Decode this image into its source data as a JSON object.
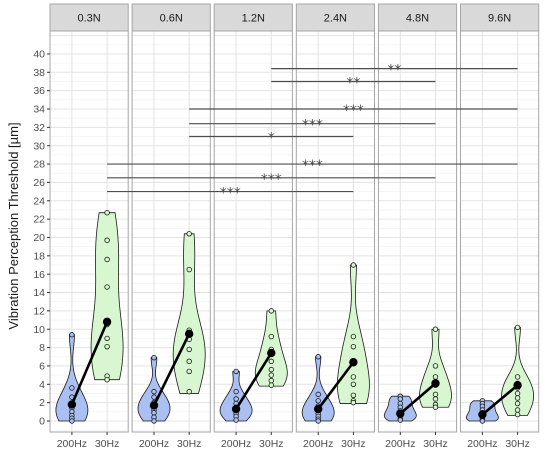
{
  "chart_data": {
    "type": "violin",
    "ylabel": "Vibration Perception Threshold [µm]",
    "xlabel": "",
    "ylim": [
      -1.2,
      42.5
    ],
    "yticks": [
      0,
      2,
      4,
      6,
      8,
      10,
      12,
      14,
      16,
      18,
      20,
      22,
      24,
      26,
      28,
      30,
      32,
      34,
      36,
      38,
      40
    ],
    "categories": [
      "200Hz",
      "30Hz"
    ],
    "grid": true,
    "colors": {
      "200Hz": "#aabff2",
      "30Hz": "#d8f7d0",
      "mean_line": "#000000",
      "panel_bg": "#ffffff",
      "strip_bg": "#d9d9d9"
    },
    "panels": [
      {
        "label": "0.3N",
        "violins": {
          "200Hz": {
            "points": [
              9.4,
              3.6,
              2.6,
              1.8,
              1.4,
              1.0,
              0.6,
              0.3,
              0.0
            ],
            "range": [
              0.0,
              9.4
            ]
          },
          "30Hz": {
            "points": [
              22.7,
              19.7,
              17.6,
              14.6,
              10.5,
              9.0,
              8.1,
              4.9,
              4.5
            ],
            "range": [
              4.5,
              22.7
            ]
          }
        },
        "means": {
          "200Hz": 1.8,
          "30Hz": 10.8
        }
      },
      {
        "label": "0.6N",
        "violins": {
          "200Hz": {
            "points": [
              6.9,
              3.2,
              2.6,
              2.0,
              1.6,
              1.2,
              0.9,
              0.4,
              0.0
            ],
            "range": [
              0.0,
              6.9
            ]
          },
          "30Hz": {
            "points": [
              20.4,
              16.5,
              9.9,
              8.9,
              7.8,
              6.5,
              5.4,
              3.2
            ],
            "range": [
              3.0,
              20.4
            ]
          }
        },
        "means": {
          "200Hz": 1.7,
          "30Hz": 9.5
        }
      },
      {
        "label": "1.2N",
        "violins": {
          "200Hz": {
            "points": [
              5.4,
              3.2,
              2.4,
              1.9,
              1.5,
              1.1,
              0.8,
              0.5,
              0.1
            ],
            "range": [
              0.0,
              5.4
            ]
          },
          "30Hz": {
            "points": [
              12.0,
              9.2,
              7.8,
              6.5,
              5.6,
              5.0,
              4.4,
              3.9
            ],
            "range": [
              3.8,
              12.0
            ]
          }
        },
        "means": {
          "200Hz": 1.3,
          "30Hz": 7.4
        }
      },
      {
        "label": "2.4N",
        "violins": {
          "200Hz": {
            "points": [
              7.0,
              2.9,
              2.2,
              1.6,
              1.1,
              0.8,
              0.5,
              0.2,
              0.0
            ],
            "range": [
              0.0,
              7.0
            ]
          },
          "30Hz": {
            "points": [
              17.0,
              9.2,
              8.1,
              6.3,
              4.8,
              4.0,
              2.8,
              2.2,
              2.0
            ],
            "range": [
              1.9,
              17.0
            ]
          }
        },
        "means": {
          "200Hz": 1.3,
          "30Hz": 6.4
        }
      },
      {
        "label": "4.8N",
        "violins": {
          "200Hz": {
            "points": [
              2.7,
              2.4,
              1.9,
              1.5,
              1.1,
              0.8,
              0.5,
              0.2,
              0.1
            ],
            "range": [
              0.0,
              2.7
            ]
          },
          "30Hz": {
            "points": [
              10.0,
              6.0,
              4.8,
              3.9,
              2.9,
              2.4,
              1.8,
              1.5
            ],
            "range": [
              1.5,
              10.0
            ]
          }
        },
        "means": {
          "200Hz": 0.8,
          "30Hz": 4.1
        }
      },
      {
        "label": "9.6N",
        "violins": {
          "200Hz": {
            "points": [
              2.2,
              1.9,
              1.6,
              1.2,
              0.9,
              0.6,
              0.3,
              0.1,
              0.0
            ],
            "range": [
              0.0,
              2.2
            ]
          },
          "30Hz": {
            "points": [
              10.2,
              4.8,
              4.1,
              3.6,
              3.0,
              2.5,
              1.9,
              1.2,
              0.7
            ],
            "range": [
              0.6,
              10.2
            ]
          }
        },
        "means": {
          "200Hz": 0.7,
          "30Hz": 3.9
        }
      }
    ],
    "significance": [
      {
        "from": "1.2N",
        "to": "9.6N",
        "y": 38.4,
        "label": "**"
      },
      {
        "from": "1.2N",
        "to": "4.8N",
        "y": 37.0,
        "label": "**"
      },
      {
        "from": "0.6N",
        "to": "9.6N",
        "y": 34.0,
        "label": "***"
      },
      {
        "from": "0.6N",
        "to": "4.8N",
        "y": 32.4,
        "label": "***"
      },
      {
        "from": "0.6N",
        "to": "2.4N",
        "y": 31.0,
        "label": "*"
      },
      {
        "from": "0.3N",
        "to": "9.6N",
        "y": 28.0,
        "label": "***"
      },
      {
        "from": "0.3N",
        "to": "4.8N",
        "y": 26.5,
        "label": "***"
      },
      {
        "from": "0.3N",
        "to": "2.4N",
        "y": 25.0,
        "label": "***"
      }
    ]
  }
}
